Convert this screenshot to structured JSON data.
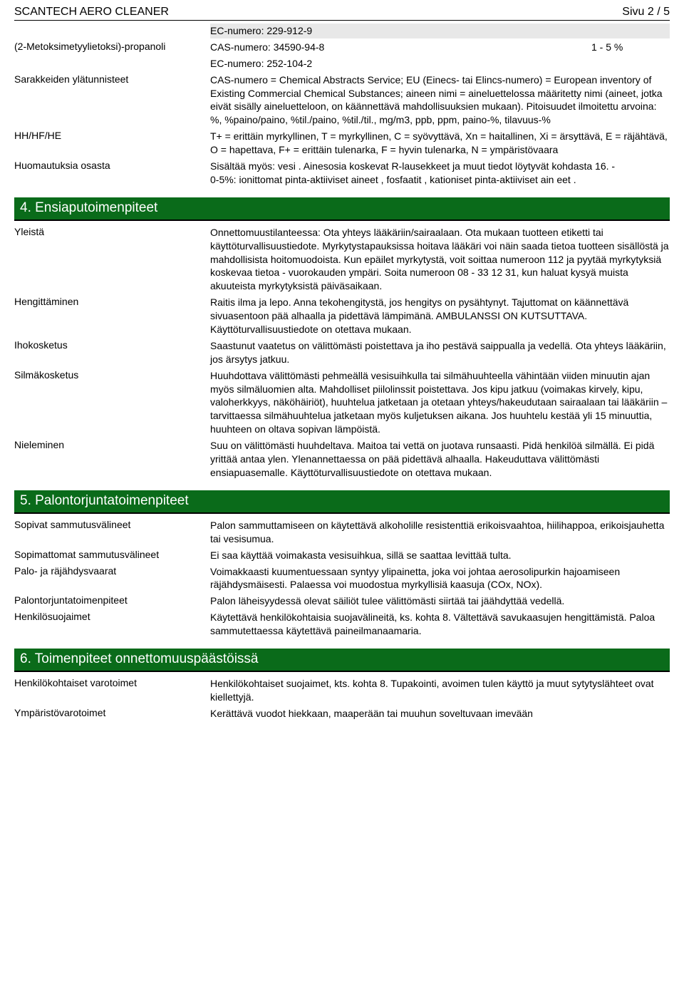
{
  "header": {
    "title": "SCANTECH AERO CLEANER",
    "page": "Sivu 2 / 5"
  },
  "top_rows": [
    {
      "label": "",
      "value": "EC-numero: 229-912-9",
      "right": "",
      "gray": true
    },
    {
      "label": "(2-Metoksimetyylietoksi)-propanoli",
      "value": "CAS-numero: 34590-94-8",
      "right": "1 - 5 %",
      "gray": false
    },
    {
      "label": "",
      "value": "EC-numero: 252-104-2",
      "right": "",
      "gray": false
    },
    {
      "label": "Sarakkeiden ylätunnisteet",
      "value": "CAS-numero = Chemical Abstracts Service; EU (Einecs- tai Elincs-numero) = European inventory of Existing Commercial Chemical Substances; aineen nimi = aineluettelossa määritetty nimi (aineet, jotka eivät sisälly aineluetteloon, on käännettävä mahdollisuuksien mukaan). Pitoisuudet ilmoitettu arvoina: %, %paino/paino, %til./paino, %til./til., mg/m3, ppb, ppm, paino-%, tilavuus-%",
      "right": "",
      "gray": false
    },
    {
      "label": "HH/HF/HE",
      "value": "T+ = erittäin myrkyllinen, T = myrkyllinen, C = syövyttävä, Xn = haitallinen, Xi = ärsyttävä, E = räjähtävä, O = hapettava, F+ = erittäin tulenarka, F = hyvin tulenarka, N = ympäristövaara",
      "right": "",
      "gray": false
    },
    {
      "label": "Huomautuksia osasta",
      "value": "Sisältää myös: vesi . Ainesosia koskevat R-lausekkeet ja muut tiedot löytyvät kohdasta 16. -\n0-5%: ionittomat pinta-aktiiviset aineet , fosfaatit , kationiset pinta-aktiiviset ain eet .",
      "right": "",
      "gray": false
    }
  ],
  "sections": [
    {
      "title": "4. Ensiaputoimenpiteet",
      "rows": [
        {
          "label": "Yleistä",
          "value": "Onnettomuustilanteessa: Ota yhteys lääkäriin/sairaalaan. Ota mukaan tuotteen etiketti tai käyttöturvallisuustiedote. Myrkytystapauksissa hoitava lääkäri voi näin saada tietoa tuotteen sisällöstä ja mahdollisista hoitomuodoista. Kun epäilet myrkytystä, voit soittaa numeroon 112 ja pyytää myrkytyksiä koskevaa tietoa -  vuorokauden ympäri. Soita numeroon 08 - 33 12 31, kun haluat kysyä muista akuuteista myrkytyksistä päiväsaikaan."
        },
        {
          "label": "Hengittäminen",
          "value": "Raitis ilma ja lepo. Anna tekohengitystä, jos hengitys on pysähtynyt. Tajuttomat on käännettävä sivuasentoon pää alhaalla ja pidettävä lämpimänä. AMBULANSSI ON KUTSUTTAVA. Käyttöturvallisuustiedote on otettava mukaan."
        },
        {
          "label": "Ihokosketus",
          "value": "Saastunut vaatetus on välittömästi poistettava ja iho pestävä saippualla ja vedellä. Ota yhteys lääkäriin, jos ärsytys jatkuu."
        },
        {
          "label": "Silmäkosketus",
          "value": "Huuhdottava välittömästi pehmeällä vesisuihkulla tai silmähuuhteella vähintään viiden minuutin ajan myös silmäluomien alta. Mahdolliset piilolinssit poistettava. Jos kipu jatkuu (voimakas kirvely, kipu, valoherkkyys, näköhäiriöt), huuhtelua jatketaan ja otetaan yhteys/hakeudutaan sairaalaan tai lääkäriin – tarvittaessa silmähuuhtelua jatketaan myös kuljetuksen aikana. Jos huuhtelu kestää yli 15 minuuttia, huuhteen on oltava sopivan lämpöistä."
        },
        {
          "label": "Nieleminen",
          "value": "Suu on välittömästi huuhdeltava. Maitoa tai vettä on juotava runsaasti. Pidä henkilöä silmällä. Ei pidä yrittää antaa ylen. Ylenannettaessa on pää pidettävä alhaalla. Hakeuduttava välittömästi ensiapuasemalle. Käyttöturvallisuustiedote on otettava mukaan."
        }
      ]
    },
    {
      "title": "5. Palontorjuntatoimenpiteet",
      "rows": [
        {
          "label": "Sopivat sammutusvälineet",
          "value": "Palon sammuttamiseen on käytettävä alkoholille resistenttiä erikoisvaahtoa, hiilihappoa, erikoisjauhetta tai vesisumua."
        },
        {
          "label": "Sopimattomat sammutusvälineet",
          "value": "Ei saa käyttää voimakasta vesisuihkua, sillä se saattaa levittää tulta."
        },
        {
          "label": "Palo- ja räjähdysvaarat",
          "value": "Voimakkaasti kuumentuessaan syntyy ylipainetta, joka voi johtaa aerosolipurkin hajoamiseen räjähdysmäisesti. Palaessa voi muodostua myrkyllisiä kaasuja (COx, NOx)."
        },
        {
          "label": "Palontorjuntatoimenpiteet",
          "value": "Palon läheisyydessä olevat säiliöt tulee välittömästi siirtää tai jäähdyttää vedellä."
        },
        {
          "label": "Henkilösuojaimet",
          "value": "Käytettävä henkilökohtaisia suojavälineitä, ks. kohta 8. Vältettävä savukaasujen hengittämistä. Paloa sammutettaessa käytettävä paineilmanaamaria."
        }
      ]
    },
    {
      "title": "6. Toimenpiteet onnettomuuspäästöissä",
      "rows": [
        {
          "label": "Henkilökohtaiset varotoimet",
          "value": "Henkilökohtaiset suojaimet, kts. kohta 8. Tupakointi, avoimen tulen käyttö ja muut sytytyslähteet ovat kiellettyjä."
        },
        {
          "label": "Ympäristövarotoimet",
          "value": "Kerättävä vuodot hiekkaan, maaperään tai muuhun soveltuvaan imevään"
        }
      ]
    }
  ],
  "colors": {
    "section_bg": "#0a6b1a",
    "section_text": "#ffffff",
    "gray_row": "#e8e8e8"
  }
}
